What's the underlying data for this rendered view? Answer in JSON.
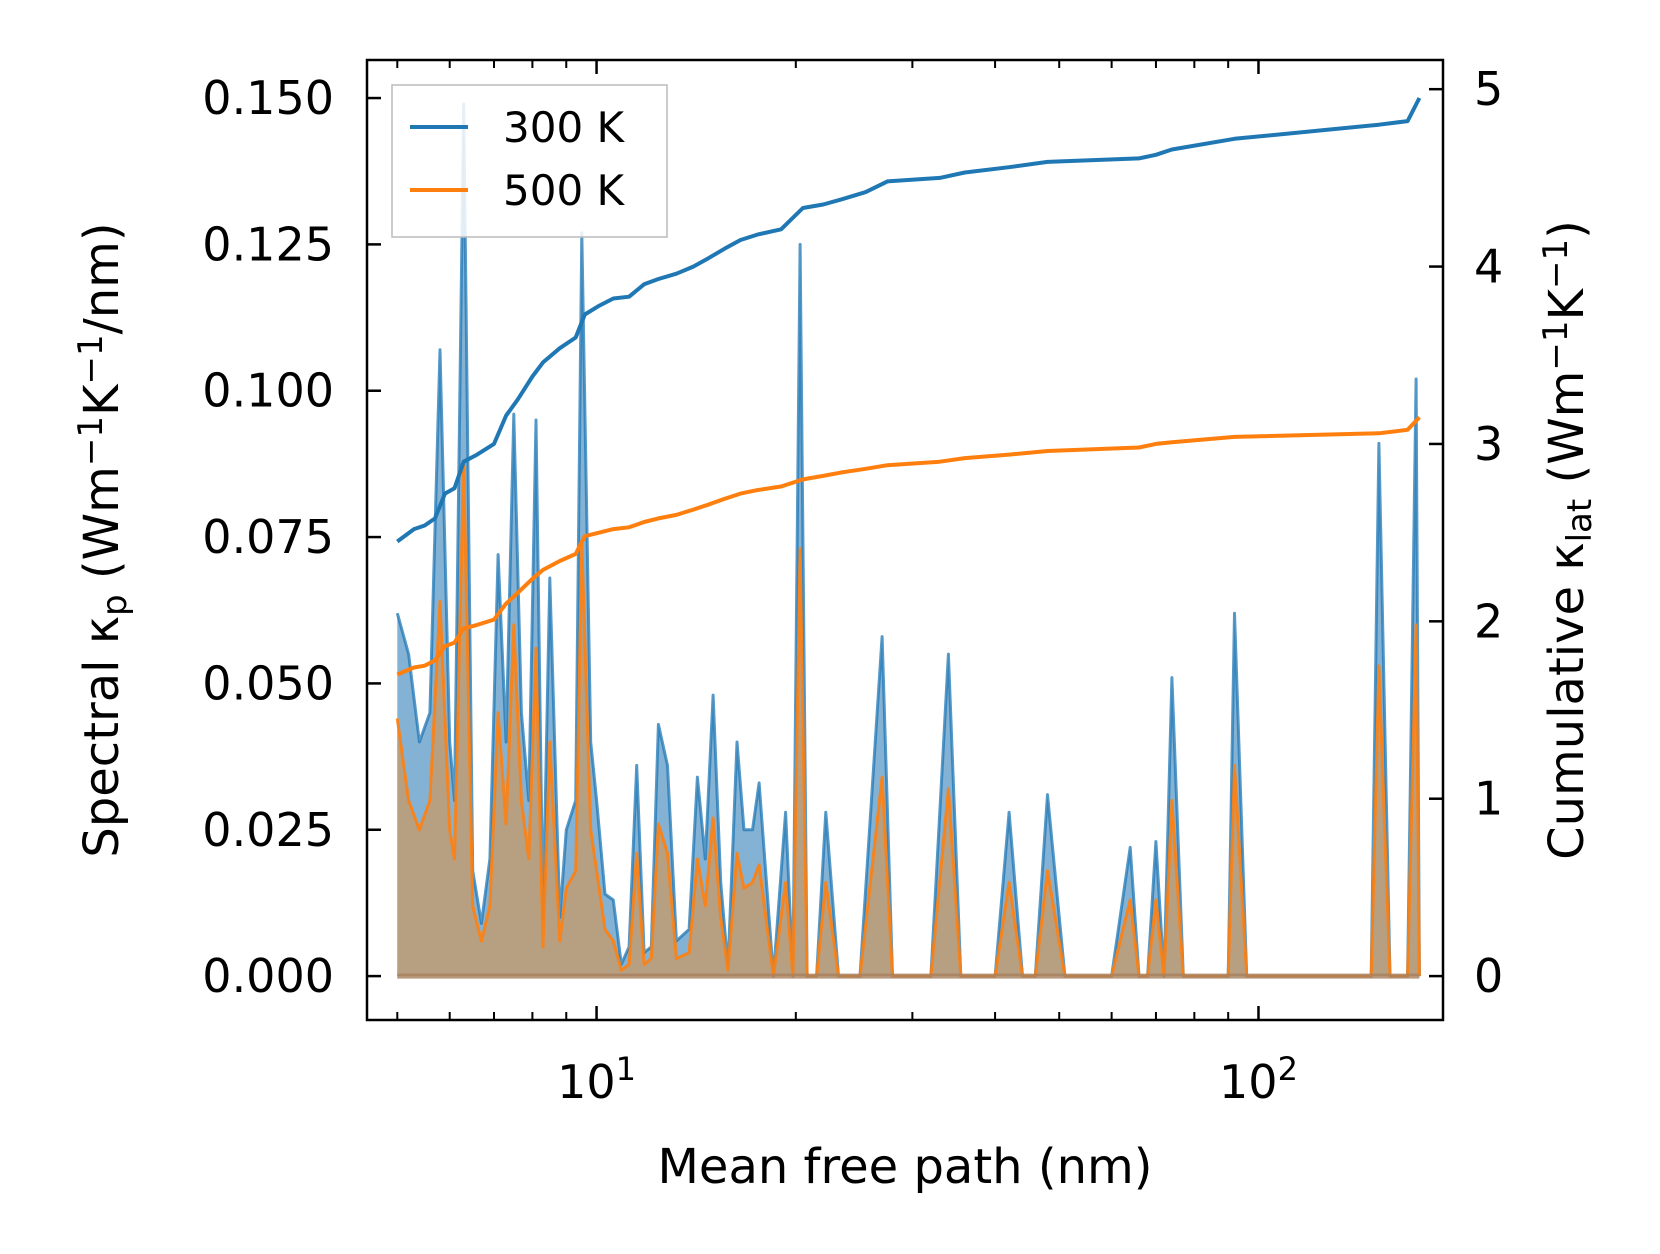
{
  "chart_data": {
    "type": "line",
    "x_scale": "log",
    "xlabel": "Mean free path (nm)",
    "ylabel_left": {
      "main": "Spectral κ",
      "sub": "p",
      "unit_open": " (Wm",
      "sup1": "−1",
      "unit_mid": "K",
      "sup2": "−1",
      "unit_close": "/nm)"
    },
    "ylabel_right": {
      "main": "Cumulative κ",
      "sub": "lat",
      "unit_open": " (Wm",
      "sup1": "−1",
      "unit_mid": "K",
      "sup2": "−1",
      "unit_close": ")"
    },
    "xlim": [
      4.5,
      190
    ],
    "ylim_left": [
      -0.0075,
      0.1565
    ],
    "ylim_right": [
      -0.2475,
      5.1645
    ],
    "x_ticks": [
      {
        "value": 10,
        "base": "10",
        "exp": "1"
      },
      {
        "value": 100,
        "base": "10",
        "exp": "2"
      }
    ],
    "y_left_ticks": [
      {
        "value": 0.0,
        "label": "0.000"
      },
      {
        "value": 0.025,
        "label": "0.025"
      },
      {
        "value": 0.05,
        "label": "0.050"
      },
      {
        "value": 0.075,
        "label": "0.075"
      },
      {
        "value": 0.1,
        "label": "0.100"
      },
      {
        "value": 0.125,
        "label": "0.125"
      },
      {
        "value": 0.15,
        "label": "0.150"
      }
    ],
    "y_right_ticks": [
      {
        "value": 0,
        "label": "0"
      },
      {
        "value": 1,
        "label": "1"
      },
      {
        "value": 2,
        "label": "2"
      },
      {
        "value": 3,
        "label": "3"
      },
      {
        "value": 4,
        "label": "4"
      },
      {
        "value": 5,
        "label": "5"
      }
    ],
    "legend_position": "top-left",
    "colors": {
      "s300": "#1f77b4",
      "s500": "#ff7f0e",
      "fill300": "#6fa5ce",
      "fill500": "#c49a6c"
    },
    "series": [
      {
        "name": "300 K",
        "color": "#1f77b4",
        "spectral": [
          [
            5.0,
            0.062
          ],
          [
            5.2,
            0.055
          ],
          [
            5.4,
            0.04
          ],
          [
            5.6,
            0.045
          ],
          [
            5.8,
            0.107
          ],
          [
            6.0,
            0.04
          ],
          [
            6.1,
            0.03
          ],
          [
            6.3,
            0.149
          ],
          [
            6.5,
            0.018
          ],
          [
            6.7,
            0.009
          ],
          [
            6.9,
            0.02
          ],
          [
            7.1,
            0.072
          ],
          [
            7.3,
            0.04
          ],
          [
            7.5,
            0.096
          ],
          [
            7.7,
            0.045
          ],
          [
            7.9,
            0.03
          ],
          [
            8.1,
            0.095
          ],
          [
            8.3,
            0.01
          ],
          [
            8.5,
            0.068
          ],
          [
            8.8,
            0.01
          ],
          [
            9.0,
            0.025
          ],
          [
            9.3,
            0.03
          ],
          [
            9.5,
            0.127
          ],
          [
            9.8,
            0.04
          ],
          [
            10.0,
            0.03
          ],
          [
            10.3,
            0.014
          ],
          [
            10.6,
            0.013
          ],
          [
            10.9,
            0.002
          ],
          [
            11.2,
            0.005
          ],
          [
            11.5,
            0.036
          ],
          [
            11.8,
            0.004
          ],
          [
            12.1,
            0.005
          ],
          [
            12.4,
            0.043
          ],
          [
            12.8,
            0.036
          ],
          [
            13.2,
            0.006
          ],
          [
            13.8,
            0.008
          ],
          [
            14.2,
            0.034
          ],
          [
            14.6,
            0.02
          ],
          [
            15.0,
            0.048
          ],
          [
            15.4,
            0.016
          ],
          [
            15.8,
            0.0015
          ],
          [
            16.3,
            0.04
          ],
          [
            16.7,
            0.025
          ],
          [
            17.2,
            0.025
          ],
          [
            17.6,
            0.033
          ],
          [
            18.5,
            0.0
          ],
          [
            19.3,
            0.028
          ],
          [
            19.8,
            0.0
          ],
          [
            20.3,
            0.125
          ],
          [
            20.8,
            0.0
          ],
          [
            21.5,
            0.0
          ],
          [
            22.2,
            0.028
          ],
          [
            23.2,
            0.0
          ],
          [
            25.0,
            0.0
          ],
          [
            27.0,
            0.058
          ],
          [
            28.0,
            0.0
          ],
          [
            32.0,
            0.0
          ],
          [
            34.0,
            0.055
          ],
          [
            35.5,
            0.0
          ],
          [
            40.0,
            0.0
          ],
          [
            42.0,
            0.028
          ],
          [
            44.0,
            0.0
          ],
          [
            46.0,
            0.0
          ],
          [
            48.0,
            0.031
          ],
          [
            51.0,
            0.0
          ],
          [
            60.0,
            0.0
          ],
          [
            64.0,
            0.022
          ],
          [
            66.0,
            0.0
          ],
          [
            68.0,
            0.0
          ],
          [
            70.0,
            0.023
          ],
          [
            72.0,
            0.0
          ],
          [
            74.0,
            0.051
          ],
          [
            77.0,
            0.0
          ],
          [
            90.0,
            0.0
          ],
          [
            92.0,
            0.062
          ],
          [
            96.0,
            0.0
          ],
          [
            148.0,
            0.0
          ],
          [
            152.0,
            0.091
          ],
          [
            158.0,
            0.0
          ],
          [
            168.0,
            0.0
          ],
          [
            173.0,
            0.102
          ],
          [
            175,
            0.0
          ]
        ],
        "cumulative": [
          [
            5.0,
            2.45
          ],
          [
            5.3,
            2.52
          ],
          [
            5.5,
            2.54
          ],
          [
            5.7,
            2.58
          ],
          [
            5.9,
            2.72
          ],
          [
            6.1,
            2.75
          ],
          [
            6.3,
            2.9
          ],
          [
            6.6,
            2.94
          ],
          [
            7.0,
            3.0
          ],
          [
            7.3,
            3.16
          ],
          [
            7.6,
            3.25
          ],
          [
            8.0,
            3.38
          ],
          [
            8.3,
            3.46
          ],
          [
            8.8,
            3.54
          ],
          [
            9.3,
            3.6
          ],
          [
            9.6,
            3.73
          ],
          [
            10.1,
            3.78
          ],
          [
            10.6,
            3.82
          ],
          [
            11.2,
            3.83
          ],
          [
            11.8,
            3.9
          ],
          [
            12.4,
            3.93
          ],
          [
            13.2,
            3.96
          ],
          [
            14.0,
            4.0
          ],
          [
            14.8,
            4.05
          ],
          [
            15.6,
            4.1
          ],
          [
            16.5,
            4.15
          ],
          [
            17.5,
            4.18
          ],
          [
            19.0,
            4.21
          ],
          [
            20.5,
            4.33
          ],
          [
            22.0,
            4.35
          ],
          [
            23.5,
            4.38
          ],
          [
            25.5,
            4.42
          ],
          [
            27.5,
            4.48
          ],
          [
            33.0,
            4.5
          ],
          [
            36.0,
            4.53
          ],
          [
            42.0,
            4.56
          ],
          [
            48.0,
            4.59
          ],
          [
            66.0,
            4.61
          ],
          [
            70.0,
            4.63
          ],
          [
            74.0,
            4.66
          ],
          [
            92.0,
            4.72
          ],
          [
            152.0,
            4.8
          ],
          [
            168.0,
            4.82
          ],
          [
            175.0,
            4.95
          ]
        ]
      },
      {
        "name": "500 K",
        "color": "#ff7f0e",
        "spectral": [
          [
            5.0,
            0.044
          ],
          [
            5.2,
            0.03
          ],
          [
            5.4,
            0.025
          ],
          [
            5.6,
            0.03
          ],
          [
            5.8,
            0.064
          ],
          [
            6.0,
            0.025
          ],
          [
            6.1,
            0.02
          ],
          [
            6.3,
            0.088
          ],
          [
            6.5,
            0.012
          ],
          [
            6.7,
            0.006
          ],
          [
            6.9,
            0.012
          ],
          [
            7.1,
            0.045
          ],
          [
            7.3,
            0.026
          ],
          [
            7.5,
            0.06
          ],
          [
            7.7,
            0.03
          ],
          [
            7.9,
            0.02
          ],
          [
            8.1,
            0.056
          ],
          [
            8.3,
            0.005
          ],
          [
            8.5,
            0.04
          ],
          [
            8.8,
            0.006
          ],
          [
            9.0,
            0.015
          ],
          [
            9.3,
            0.018
          ],
          [
            9.5,
            0.074
          ],
          [
            9.8,
            0.025
          ],
          [
            10.0,
            0.018
          ],
          [
            10.3,
            0.008
          ],
          [
            10.6,
            0.006
          ],
          [
            10.9,
            0.001
          ],
          [
            11.2,
            0.002
          ],
          [
            11.5,
            0.021
          ],
          [
            11.8,
            0.002
          ],
          [
            12.1,
            0.003
          ],
          [
            12.4,
            0.026
          ],
          [
            12.8,
            0.021
          ],
          [
            13.2,
            0.003
          ],
          [
            13.8,
            0.004
          ],
          [
            14.2,
            0.02
          ],
          [
            14.6,
            0.012
          ],
          [
            15.0,
            0.027
          ],
          [
            15.4,
            0.01
          ],
          [
            15.8,
            0.001
          ],
          [
            16.3,
            0.021
          ],
          [
            16.7,
            0.015
          ],
          [
            17.2,
            0.016
          ],
          [
            17.6,
            0.019
          ],
          [
            18.5,
            0.0
          ],
          [
            19.3,
            0.016
          ],
          [
            19.8,
            0.0
          ],
          [
            20.3,
            0.073
          ],
          [
            20.8,
            0.0
          ],
          [
            21.5,
            0.0
          ],
          [
            22.2,
            0.016
          ],
          [
            23.2,
            0.0
          ],
          [
            25.0,
            0.0
          ],
          [
            27.0,
            0.034
          ],
          [
            28.0,
            0.0
          ],
          [
            32.0,
            0.0
          ],
          [
            34.0,
            0.032
          ],
          [
            35.5,
            0.0
          ],
          [
            40.0,
            0.0
          ],
          [
            42.0,
            0.016
          ],
          [
            44.0,
            0.0
          ],
          [
            46.0,
            0.0
          ],
          [
            48.0,
            0.018
          ],
          [
            51.0,
            0.0
          ],
          [
            60.0,
            0.0
          ],
          [
            64.0,
            0.013
          ],
          [
            66.0,
            0.0
          ],
          [
            68.0,
            0.0
          ],
          [
            70.0,
            0.013
          ],
          [
            72.0,
            0.0
          ],
          [
            74.0,
            0.03
          ],
          [
            77.0,
            0.0
          ],
          [
            90.0,
            0.0
          ],
          [
            92.0,
            0.036
          ],
          [
            96.0,
            0.0
          ],
          [
            148.0,
            0.0
          ],
          [
            152.0,
            0.053
          ],
          [
            158.0,
            0.0
          ],
          [
            168.0,
            0.0
          ],
          [
            173.0,
            0.06
          ],
          [
            175,
            0.0
          ]
        ],
        "cumulative": [
          [
            5.0,
            1.7
          ],
          [
            5.3,
            1.74
          ],
          [
            5.5,
            1.75
          ],
          [
            5.7,
            1.78
          ],
          [
            5.9,
            1.86
          ],
          [
            6.1,
            1.88
          ],
          [
            6.3,
            1.96
          ],
          [
            6.6,
            1.98
          ],
          [
            7.0,
            2.01
          ],
          [
            7.3,
            2.1
          ],
          [
            7.6,
            2.16
          ],
          [
            8.0,
            2.24
          ],
          [
            8.3,
            2.29
          ],
          [
            8.8,
            2.34
          ],
          [
            9.3,
            2.38
          ],
          [
            9.6,
            2.48
          ],
          [
            10.1,
            2.5
          ],
          [
            10.6,
            2.52
          ],
          [
            11.2,
            2.53
          ],
          [
            11.8,
            2.56
          ],
          [
            12.4,
            2.58
          ],
          [
            13.2,
            2.6
          ],
          [
            14.0,
            2.63
          ],
          [
            14.8,
            2.66
          ],
          [
            15.6,
            2.69
          ],
          [
            16.5,
            2.72
          ],
          [
            17.5,
            2.74
          ],
          [
            19.0,
            2.76
          ],
          [
            20.5,
            2.8
          ],
          [
            22.0,
            2.82
          ],
          [
            23.5,
            2.84
          ],
          [
            25.5,
            2.86
          ],
          [
            27.5,
            2.88
          ],
          [
            33.0,
            2.9
          ],
          [
            36.0,
            2.92
          ],
          [
            42.0,
            2.94
          ],
          [
            48.0,
            2.96
          ],
          [
            66.0,
            2.98
          ],
          [
            70.0,
            3.0
          ],
          [
            74.0,
            3.01
          ],
          [
            92.0,
            3.04
          ],
          [
            152.0,
            3.06
          ],
          [
            168.0,
            3.08
          ],
          [
            175.0,
            3.15
          ]
        ]
      }
    ]
  }
}
